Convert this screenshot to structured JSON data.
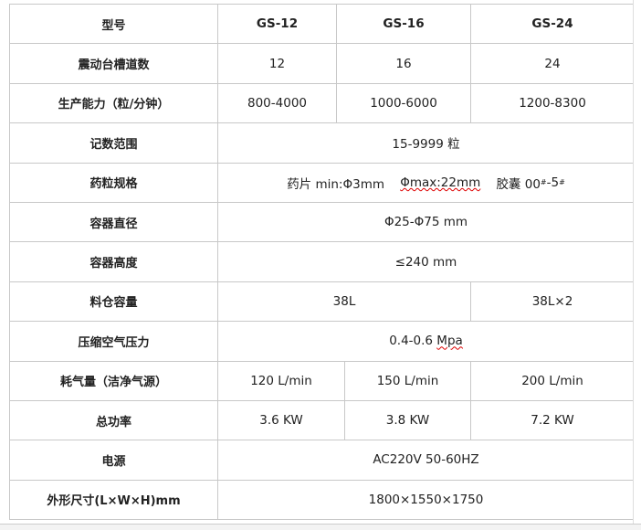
{
  "table": {
    "header": [
      "型号",
      "GS-12",
      "GS-16",
      "GS-24"
    ],
    "rows": [
      {
        "label": "震动台槽道数",
        "values": [
          "12",
          "16",
          "24"
        ]
      },
      {
        "label": "生产能力（粒/分钟）",
        "values": [
          "800-4000",
          "1000-6000",
          "1200-8300"
        ]
      },
      {
        "label": "记数范围",
        "value": "15-9999 粒"
      },
      {
        "label": "药粒规格",
        "tablet": "药片 min:Φ3mm",
        "max": "Φmax:22mm",
        "capsule": "胶囊 00",
        "sup1": "#",
        "dash": "-5",
        "sup2": "#"
      },
      {
        "label": "容器直径",
        "value": "Φ25-Φ75 mm"
      },
      {
        "label": "容器高度",
        "value": "≤240 mm"
      },
      {
        "label": "料仓容量",
        "values": [
          "38L",
          "38L×2"
        ]
      },
      {
        "label": "压缩空气压力",
        "value_prefix": "0.4-0.6 ",
        "value_unit": "Mpa"
      },
      {
        "label": "耗气量（洁净气源）",
        "values": [
          "120 L/min",
          "150 L/min",
          "200 L/min"
        ]
      },
      {
        "label": "总功率",
        "values": [
          "3.6 KW",
          "3.8 KW",
          "7.2 KW"
        ]
      },
      {
        "label": "电源",
        "value": "AC220V  50-60HZ"
      },
      {
        "label": "外形尺寸(L×W×H)mm",
        "value": "1800×1550×1750"
      }
    ]
  }
}
